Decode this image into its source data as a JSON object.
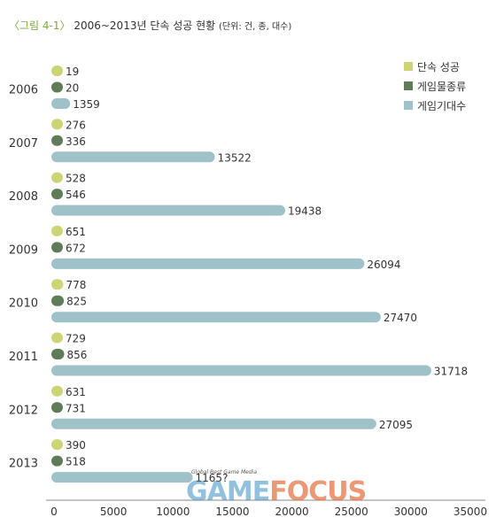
{
  "title": {
    "fig": "〈그림 4-1〉",
    "main": "2006~2013년 단속 성공 현황",
    "unit": "(단위: 건, 종, 대수)"
  },
  "watermark": {
    "small": "Global Best Game Media",
    "game": "GAME",
    "focus": "FOCUS"
  },
  "chart_data": {
    "type": "bar",
    "orientation": "horizontal",
    "categories": [
      "2006",
      "2007",
      "2008",
      "2009",
      "2010",
      "2011",
      "2012",
      "2013"
    ],
    "series": [
      {
        "name": "단속 성공",
        "color": "#ccd476",
        "values": [
          19,
          276,
          528,
          651,
          778,
          729,
          631,
          390
        ],
        "labels": [
          "19",
          "276",
          "528",
          "651",
          "778",
          "729",
          "631",
          "390"
        ]
      },
      {
        "name": "게임물종류",
        "color": "#5e7c58",
        "values": [
          20,
          336,
          546,
          672,
          825,
          856,
          731,
          518
        ],
        "labels": [
          "20",
          "336",
          "546",
          "672",
          "825",
          "856",
          "731",
          "518"
        ]
      },
      {
        "name": "게임기대수",
        "color": "#9fc2c8",
        "values": [
          1359,
          13522,
          19438,
          26094,
          27470,
          31718,
          27095,
          11657
        ],
        "labels": [
          "1359",
          "13522",
          "19438",
          "26094",
          "27470",
          "31718",
          "27095",
          "1165?"
        ]
      }
    ],
    "x_ticks": [
      "0",
      "5000",
      "10000",
      "15000",
      "20000",
      "25000",
      "30000",
      "35000"
    ],
    "xlim": [
      0,
      35000
    ],
    "legend_position": "top-right",
    "grid": false
  }
}
